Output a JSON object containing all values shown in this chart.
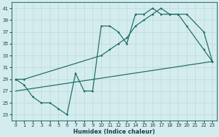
{
  "xlabel": "Humidex (Indice chaleur)",
  "bg_color": "#d4ecee",
  "grid_color": "#b8d8dc",
  "line_color": "#1a6b60",
  "xlim": [
    -0.5,
    23.5
  ],
  "ylim": [
    22,
    42
  ],
  "xticks": [
    0,
    1,
    2,
    3,
    4,
    5,
    6,
    7,
    8,
    9,
    10,
    11,
    12,
    13,
    14,
    15,
    16,
    17,
    18,
    19,
    20,
    21,
    22,
    23
  ],
  "yticks": [
    23,
    25,
    27,
    29,
    31,
    33,
    35,
    37,
    39,
    41
  ],
  "line1_x": [
    0,
    1,
    2,
    3,
    4,
    5,
    6,
    7,
    8,
    9,
    10,
    11,
    12,
    13,
    14,
    15,
    16,
    17,
    18,
    19,
    20,
    22,
    23
  ],
  "line1_y": [
    29,
    28,
    26,
    25,
    25,
    24,
    23,
    30,
    27,
    27,
    38,
    38,
    37,
    35,
    40,
    40,
    41,
    40,
    40,
    40,
    38,
    34,
    32
  ],
  "line2_x": [
    0,
    1,
    10,
    11,
    12,
    13,
    14,
    15,
    16,
    17,
    18,
    19,
    20,
    22,
    23
  ],
  "line2_y": [
    29,
    29,
    33,
    34,
    35,
    36,
    38,
    39,
    40,
    41,
    40,
    40,
    40,
    37,
    32
  ],
  "line3_x": [
    0,
    23
  ],
  "line3_y": [
    27,
    32
  ]
}
